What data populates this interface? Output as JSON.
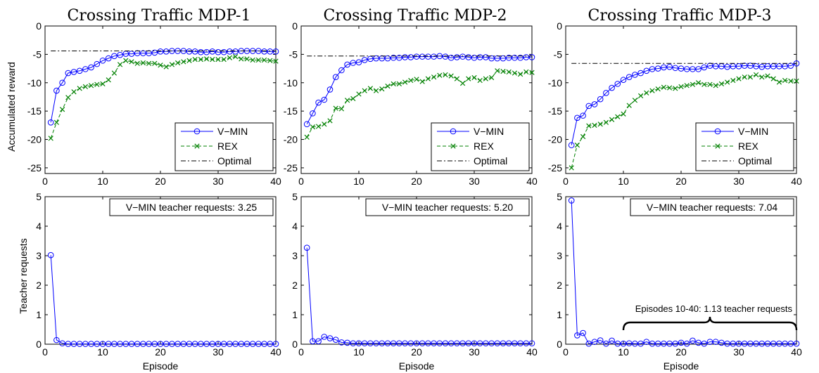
{
  "colors": {
    "vmin": "#0000ff",
    "rex": "#008000",
    "optimal": "#000000"
  },
  "chart_data": [
    {
      "type": "line",
      "title": "Crossing Traffic MDP-1",
      "xlabel": "",
      "ylabel": "Accumulated reward",
      "xlim": [
        0,
        40
      ],
      "ylim": [
        -26,
        0
      ],
      "xticks": [
        "0",
        "10",
        "20",
        "30",
        "40"
      ],
      "yticks": [
        "0",
        "-5",
        "-10",
        "-15",
        "-20",
        "-25"
      ],
      "legend": {
        "position": "bottom-right",
        "entries": [
          "V−MIN",
          "REX",
          "Optimal"
        ]
      },
      "series": [
        {
          "name": "V−MIN",
          "values": [
            -17,
            -11.4,
            -10,
            -8.3,
            -8.1,
            -7.9,
            -7.6,
            -7.3,
            -6.7,
            -6.1,
            -5.7,
            -5.3,
            -5.1,
            -4.9,
            -4.9,
            -4.8,
            -4.8,
            -4.8,
            -4.7,
            -4.5,
            -4.5,
            -4.4,
            -4.4,
            -4.4,
            -4.5,
            -4.5,
            -4.6,
            -4.6,
            -4.5,
            -4.6,
            -4.6,
            -4.5,
            -4.5,
            -4.4,
            -4.4,
            -4.4,
            -4.4,
            -4.5,
            -4.5,
            -4.5
          ]
        },
        {
          "name": "REX",
          "values": [
            -19.8,
            -17,
            -14.7,
            -12.6,
            -11.6,
            -11,
            -10.7,
            -10.5,
            -10.3,
            -10.2,
            -9.5,
            -8.3,
            -6.8,
            -6.1,
            -6.3,
            -6.6,
            -6.5,
            -6.6,
            -6.6,
            -6.9,
            -7.2,
            -6.8,
            -6.5,
            -6.3,
            -6.1,
            -5.9,
            -5.9,
            -5.8,
            -5.9,
            -5.9,
            -5.9,
            -5.6,
            -5.4,
            -5.8,
            -5.8,
            -6,
            -6,
            -6,
            -6.1,
            -6.2
          ]
        },
        {
          "name": "Optimal",
          "values": [
            -4.4,
            -4.4
          ]
        }
      ]
    },
    {
      "type": "line",
      "title": "Crossing Traffic MDP-2",
      "xlabel": "",
      "ylabel": "",
      "xlim": [
        0,
        40
      ],
      "ylim": [
        -26,
        0
      ],
      "xticks": [
        "0",
        "10",
        "20",
        "30",
        "40"
      ],
      "yticks": [
        "0",
        "-5",
        "-10",
        "-15",
        "-20",
        "-25"
      ],
      "legend": {
        "position": "bottom-right",
        "entries": [
          "V−MIN",
          "REX",
          "Optimal"
        ]
      },
      "series": [
        {
          "name": "V−MIN",
          "values": [
            -17.3,
            -15.4,
            -13.5,
            -13,
            -11.2,
            -9,
            -7.8,
            -6.8,
            -6.5,
            -6.4,
            -6,
            -5.8,
            -5.7,
            -5.7,
            -5.7,
            -5.6,
            -5.6,
            -5.5,
            -5.5,
            -5.4,
            -5.4,
            -5.4,
            -5.4,
            -5.3,
            -5.4,
            -5.6,
            -5.5,
            -5.4,
            -5.5,
            -5.6,
            -5.5,
            -5.5,
            -5.7,
            -5.7,
            -5.7,
            -5.6,
            -5.6,
            -5.6,
            -5.5,
            -5.5
          ]
        },
        {
          "name": "REX",
          "values": [
            -19.6,
            -17.8,
            -17.7,
            -17.3,
            -16.7,
            -14.5,
            -14.6,
            -13.1,
            -12.8,
            -12,
            -11.4,
            -11,
            -11.4,
            -11.1,
            -10.6,
            -10.2,
            -10.2,
            -9.9,
            -9.6,
            -9.4,
            -9.8,
            -9.3,
            -9,
            -8.7,
            -8.6,
            -8.8,
            -9.3,
            -10.1,
            -9.3,
            -9.1,
            -9.6,
            -9.3,
            -9.1,
            -7.9,
            -8,
            -8.1,
            -8.3,
            -8.5,
            -8.1,
            -8.2
          ]
        },
        {
          "name": "Optimal",
          "values": [
            -5.3,
            -5.3
          ]
        }
      ]
    },
    {
      "type": "line",
      "title": "Crossing Traffic MDP-3",
      "xlabel": "",
      "ylabel": "",
      "xlim": [
        0,
        40
      ],
      "ylim": [
        -26,
        0
      ],
      "xticks": [
        "0",
        "10",
        "20",
        "30",
        "40"
      ],
      "yticks": [
        "0",
        "-5",
        "-10",
        "-15",
        "-20",
        "-25"
      ],
      "legend": {
        "position": "bottom-right",
        "entries": [
          "V−MIN",
          "REX",
          "Optimal"
        ]
      },
      "series": [
        {
          "name": "V−MIN",
          "values": [
            -21,
            -16.2,
            -15.8,
            -14.1,
            -13.8,
            -12.9,
            -11.8,
            -10.9,
            -10.2,
            -9.5,
            -9,
            -8.6,
            -8.3,
            -7.9,
            -7.6,
            -7.5,
            -7.3,
            -7.2,
            -7.4,
            -7.5,
            -7.6,
            -7.6,
            -7.6,
            -7.3,
            -7,
            -7.1,
            -7.1,
            -7.2,
            -7.1,
            -7.1,
            -7,
            -7,
            -7.1,
            -7.2,
            -7.1,
            -7.1,
            -7.1,
            -7.1,
            -7,
            -6.6
          ]
        },
        {
          "name": "REX",
          "values": [
            -25,
            -21,
            -19.5,
            -17.6,
            -17.5,
            -17.3,
            -17,
            -16.5,
            -16,
            -15.5,
            -14,
            -13.1,
            -12.3,
            -11.8,
            -11.4,
            -11.1,
            -10.8,
            -10.9,
            -11,
            -10.7,
            -10.5,
            -10.3,
            -10,
            -10.3,
            -10.3,
            -10.5,
            -10.2,
            -9.9,
            -9.6,
            -9.3,
            -9,
            -9,
            -8.6,
            -9,
            -8.8,
            -9.3,
            -9.9,
            -9.6,
            -9.7,
            -9.7
          ]
        },
        {
          "name": "Optimal",
          "values": [
            -6.6,
            -6.6
          ]
        }
      ]
    },
    {
      "type": "line",
      "title": "",
      "xlabel": "Episode",
      "ylabel": "Teacher requests",
      "xlim": [
        0,
        40
      ],
      "ylim": [
        0,
        5
      ],
      "xticks": [
        "0",
        "10",
        "20",
        "30",
        "40"
      ],
      "yticks": [
        "0",
        "1",
        "2",
        "3",
        "4",
        "5"
      ],
      "annotation": "V−MIN teacher requests: 3.25",
      "series": [
        {
          "name": "V−MIN",
          "values": [
            3.02,
            0.14,
            0.03,
            0.01,
            0.01,
            0.01,
            0.01,
            0.01,
            0.01,
            0.01,
            0.01,
            0.01,
            0.01,
            0.01,
            0.01,
            0.01,
            0.01,
            0.01,
            0.01,
            0.01,
            0.01,
            0.01,
            0.01,
            0.01,
            0.01,
            0.01,
            0.01,
            0.01,
            0.01,
            0.01,
            0.01,
            0.01,
            0.01,
            0.01,
            0.01,
            0.01,
            0.01,
            0.01,
            0.01,
            0.01
          ]
        }
      ]
    },
    {
      "type": "line",
      "title": "",
      "xlabel": "Episode",
      "ylabel": "",
      "xlim": [
        0,
        40
      ],
      "ylim": [
        0,
        5
      ],
      "xticks": [
        "0",
        "10",
        "20",
        "30",
        "40"
      ],
      "yticks": [
        "0",
        "1",
        "2",
        "3",
        "4",
        "5"
      ],
      "annotation": "V−MIN teacher requests: 5.20",
      "series": [
        {
          "name": "V−MIN",
          "values": [
            3.27,
            0.1,
            0.1,
            0.25,
            0.2,
            0.15,
            0.06,
            0.05,
            0.03,
            0.03,
            0.03,
            0.03,
            0.03,
            0.03,
            0.03,
            0.03,
            0.03,
            0.03,
            0.03,
            0.03,
            0.03,
            0.03,
            0.03,
            0.03,
            0.03,
            0.03,
            0.03,
            0.03,
            0.03,
            0.03,
            0.03,
            0.03,
            0.03,
            0.03,
            0.03,
            0.03,
            0.03,
            0.03,
            0.03,
            0.03
          ]
        }
      ]
    },
    {
      "type": "line",
      "title": "",
      "xlabel": "Episode",
      "ylabel": "",
      "xlim": [
        0,
        40
      ],
      "ylim": [
        0,
        5
      ],
      "xticks": [
        "0",
        "10",
        "20",
        "30",
        "40"
      ],
      "yticks": [
        "0",
        "1",
        "2",
        "3",
        "4",
        "5"
      ],
      "annotation": "V−MIN teacher requests: 7.04",
      "brace_annotation": "Episodes 10-40: 1.13 teacher requests",
      "brace_range": [
        10,
        40
      ],
      "series": [
        {
          "name": "V−MIN",
          "values": [
            4.87,
            0.3,
            0.38,
            0.02,
            0.08,
            0.13,
            0.02,
            0.12,
            0.02,
            0.02,
            0.03,
            0.02,
            0.02,
            0.08,
            0.02,
            0.02,
            0.02,
            0.02,
            0.02,
            0.05,
            0.02,
            0.12,
            0.05,
            0.02,
            0.08,
            0.08,
            0.05,
            0.02,
            0.02,
            0.02,
            0.02,
            0.02,
            0.02,
            0.02,
            0.02,
            0.02,
            0.02,
            0.02,
            0.02,
            0.02
          ]
        }
      ]
    }
  ]
}
